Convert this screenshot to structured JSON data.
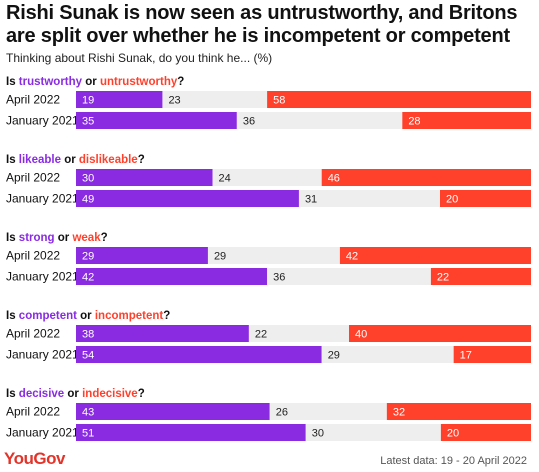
{
  "title": "Rishi Sunak is now seen as untrustworthy, and Britons are split over whether he is incompetent or competent",
  "subtitle": "Thinking about Rishi Sunak, do you think he... (%)",
  "logo": "YouGov",
  "footer": "Latest data: 19 - 20 April 2022",
  "colors": {
    "positive": "#8a2be2",
    "neutral": "#eeeeee",
    "negative": "#ff412c"
  },
  "chart_data": {
    "type": "bar",
    "stacked": true,
    "orientation": "horizontal",
    "groups": [
      {
        "prefix": "Is ",
        "positive": "trustworthy",
        "joiner": " or ",
        "negative": "untrustworthy",
        "suffix": "?",
        "rows": [
          {
            "label": "April 2022",
            "values": [
              19,
              23,
              58
            ]
          },
          {
            "label": "January 2021",
            "values": [
              35,
              36,
              28
            ]
          }
        ]
      },
      {
        "prefix": "Is ",
        "positive": "likeable",
        "joiner": " or ",
        "negative": "dislikeable",
        "suffix": "?",
        "rows": [
          {
            "label": "April 2022",
            "values": [
              30,
              24,
              46
            ]
          },
          {
            "label": "January 2021",
            "values": [
              49,
              31,
              20
            ]
          }
        ]
      },
      {
        "prefix": "Is ",
        "positive": "strong",
        "joiner": " or ",
        "negative": "weak",
        "suffix": "?",
        "rows": [
          {
            "label": "April 2022",
            "values": [
              29,
              29,
              42
            ]
          },
          {
            "label": "January 2021",
            "values": [
              42,
              36,
              22
            ]
          }
        ]
      },
      {
        "prefix": "Is ",
        "positive": "competent",
        "joiner": " or ",
        "negative": "incompetent",
        "suffix": "?",
        "rows": [
          {
            "label": "April 2022",
            "values": [
              38,
              22,
              40
            ]
          },
          {
            "label": "January 2021",
            "values": [
              54,
              29,
              17
            ]
          }
        ]
      },
      {
        "prefix": "Is ",
        "positive": "decisive",
        "joiner": " or ",
        "negative": "indecisive",
        "suffix": "?",
        "rows": [
          {
            "label": "April 2022",
            "values": [
              43,
              26,
              32
            ]
          },
          {
            "label": "January 2021",
            "values": [
              51,
              30,
              20
            ]
          }
        ]
      }
    ]
  }
}
